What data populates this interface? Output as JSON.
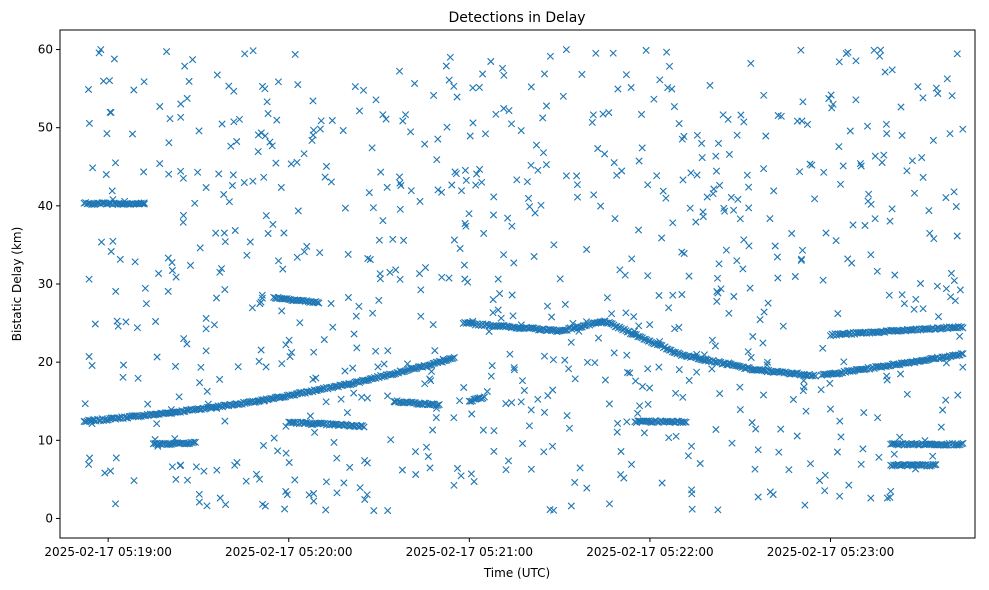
{
  "chart_data": {
    "type": "scatter",
    "title": "Detections in Delay",
    "xlabel": "Time (UTC)",
    "ylabel": "Bistatic Delay (km)",
    "marker": "x",
    "color": "#1f77b4",
    "grid": false,
    "legend": "none",
    "xlim": [
      "2025-02-17 05:18:44",
      "2025-02-17 05:23:48"
    ],
    "ylim": [
      -2.5,
      62.5
    ],
    "x_ticks": [
      "2025-02-17 05:19:00",
      "2025-02-17 05:20:00",
      "2025-02-17 05:21:00",
      "2025-02-17 05:22:00",
      "2025-02-17 05:23:00"
    ],
    "y_ticks": [
      "0",
      "10",
      "20",
      "30",
      "40",
      "50",
      "60"
    ],
    "x_range": [
      "2025-02-17 05:18:52",
      "2025-02-17 05:23:44"
    ],
    "tracks": [
      {
        "points": [
          [
            "2025-02-17 05:18:52",
            12.4
          ],
          [
            "2025-02-17 05:19:20",
            13.5
          ],
          [
            "2025-02-17 05:19:50",
            15.0
          ],
          [
            "2025-02-17 05:20:20",
            17.2
          ],
          [
            "2025-02-17 05:20:45",
            19.5
          ],
          [
            "2025-02-17 05:20:55",
            20.5
          ]
        ]
      },
      {
        "points": [
          [
            "2025-02-17 05:20:58",
            25.0
          ],
          [
            "2025-02-17 05:21:30",
            24.0
          ],
          [
            "2025-02-17 05:21:45",
            25.2
          ],
          [
            "2025-02-17 05:22:10",
            21.0
          ],
          [
            "2025-02-17 05:22:35",
            19.0
          ],
          [
            "2025-02-17 05:22:55",
            18.3
          ]
        ]
      },
      {
        "points": [
          [
            "2025-02-17 05:22:57",
            18.3
          ],
          [
            "2025-02-17 05:23:44",
            21.0
          ]
        ]
      },
      {
        "points": [
          [
            "2025-02-17 05:18:52",
            40.3
          ],
          [
            "2025-02-17 05:19:12",
            40.3
          ]
        ]
      },
      {
        "points": [
          [
            "2025-02-17 05:19:15",
            9.5
          ],
          [
            "2025-02-17 05:19:29",
            9.7
          ]
        ]
      },
      {
        "points": [
          [
            "2025-02-17 05:19:55",
            28.3
          ],
          [
            "2025-02-17 05:20:10",
            27.6
          ]
        ]
      },
      {
        "points": [
          [
            "2025-02-17 05:20:00",
            12.3
          ],
          [
            "2025-02-17 05:20:25",
            11.8
          ]
        ]
      },
      {
        "points": [
          [
            "2025-02-17 05:20:35",
            15.0
          ],
          [
            "2025-02-17 05:20:50",
            14.5
          ]
        ]
      },
      {
        "points": [
          [
            "2025-02-17 05:21:00",
            15.0
          ],
          [
            "2025-02-17 05:21:05",
            15.5
          ]
        ]
      },
      {
        "points": [
          [
            "2025-02-17 05:21:55",
            12.4
          ],
          [
            "2025-02-17 05:22:12",
            12.4
          ]
        ]
      },
      {
        "points": [
          [
            "2025-02-17 05:23:00",
            23.5
          ],
          [
            "2025-02-17 05:23:44",
            24.5
          ]
        ]
      },
      {
        "points": [
          [
            "2025-02-17 05:23:20",
            9.5
          ],
          [
            "2025-02-17 05:23:44",
            9.5
          ]
        ]
      },
      {
        "points": [
          [
            "2025-02-17 05:23:20",
            6.8
          ],
          [
            "2025-02-17 05:23:35",
            6.8
          ]
        ]
      }
    ],
    "noise_seed": 7,
    "noise_count": 800
  }
}
